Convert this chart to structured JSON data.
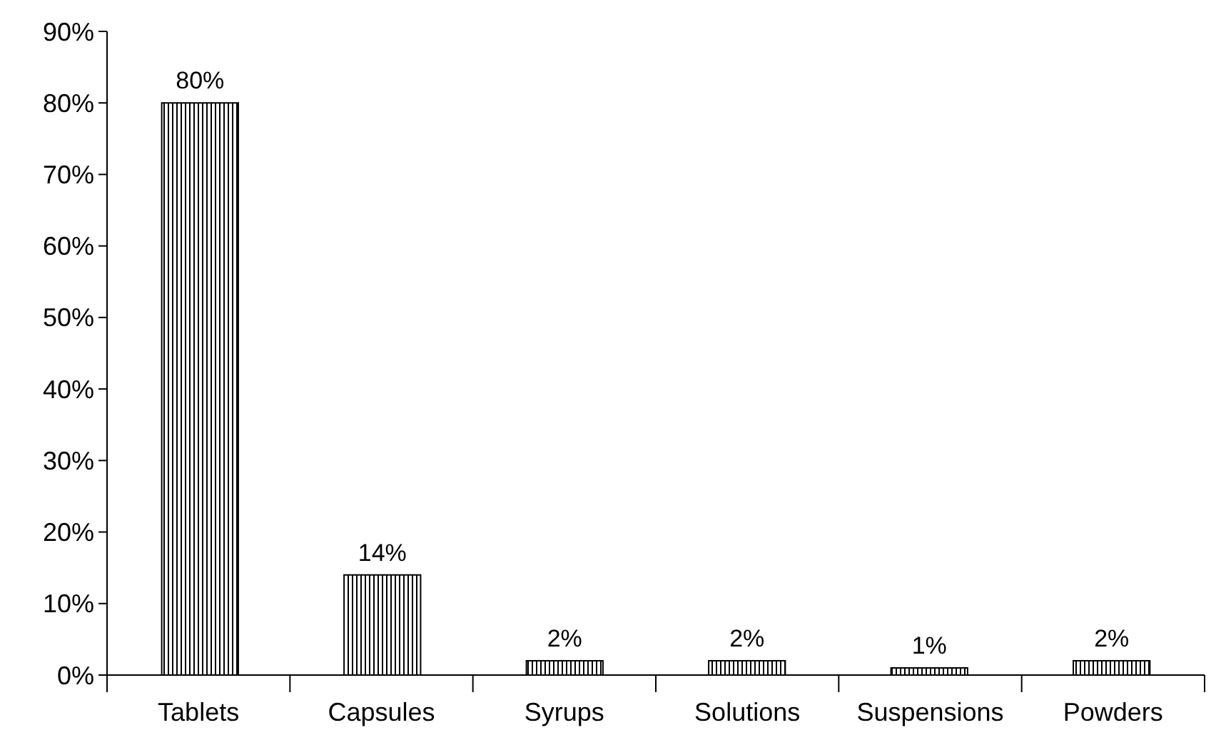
{
  "chart_data": {
    "type": "bar",
    "categories": [
      "Tablets",
      "Capsules",
      "Syrups",
      "Solutions",
      "Suspensions",
      "Powders"
    ],
    "values": [
      80,
      14,
      2,
      2,
      1,
      2
    ],
    "colors": [
      "#000000",
      "#000000",
      "#000000",
      "#000000",
      "#000000",
      "#000000"
    ],
    "ylim": [
      0,
      90
    ],
    "yticks": [
      {
        "value": 0,
        "label": "0%"
      },
      {
        "value": 10,
        "label": "10%"
      },
      {
        "value": 20,
        "label": "20%"
      },
      {
        "value": 30,
        "label": "30%"
      },
      {
        "value": 40,
        "label": "40%"
      },
      {
        "value": 50,
        "label": "50%"
      },
      {
        "value": 60,
        "label": "60%"
      },
      {
        "value": 70,
        "label": "70%"
      },
      {
        "value": 80,
        "label": "80%"
      },
      {
        "value": 90,
        "label": "90%"
      }
    ],
    "value_labels": [
      "80%",
      "14%",
      "2%",
      "2%",
      "1%",
      "2%"
    ],
    "grid": false
  }
}
